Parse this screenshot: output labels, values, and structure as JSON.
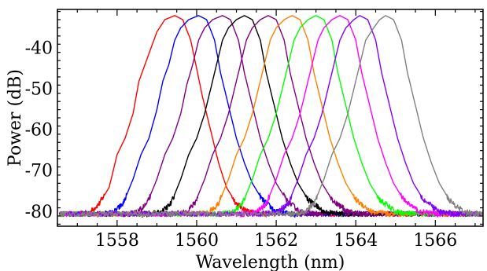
{
  "chart_data": {
    "type": "line",
    "title": "",
    "xlabel": "Wavelength (nm)",
    "ylabel": "Power (dB)",
    "xlim": [
      1556.5,
      1567.2
    ],
    "ylim": [
      -83.5,
      -30.5
    ],
    "x_ticks": [
      1558,
      1560,
      1562,
      1564,
      1566
    ],
    "y_ticks": [
      -40,
      -50,
      -60,
      -70,
      -80
    ],
    "legend": "none",
    "grid": false,
    "noise_floor": -80.5,
    "peak_level": -32,
    "series": [
      {
        "color": "#ff0000",
        "values": [
          [
            1557.0,
            -80.6
          ],
          [
            1557.3,
            -80.2
          ],
          [
            1557.55,
            -78
          ],
          [
            1557.8,
            -74
          ],
          [
            1558.0,
            -66
          ],
          [
            1558.2,
            -62
          ],
          [
            1558.4,
            -56
          ],
          [
            1558.55,
            -48
          ],
          [
            1558.7,
            -44
          ],
          [
            1558.85,
            -40
          ],
          [
            1559.0,
            -36
          ],
          [
            1559.2,
            -33
          ],
          [
            1559.45,
            -32
          ],
          [
            1559.65,
            -33
          ],
          [
            1559.85,
            -38
          ],
          [
            1560.0,
            -45
          ],
          [
            1560.15,
            -52
          ],
          [
            1560.35,
            -60
          ],
          [
            1560.55,
            -68
          ],
          [
            1560.75,
            -74
          ],
          [
            1561.0,
            -78
          ],
          [
            1561.3,
            -80
          ],
          [
            1561.8,
            -80.6
          ]
        ]
      },
      {
        "color": "#0000ff",
        "values": [
          [
            1557.5,
            -80.6
          ],
          [
            1557.9,
            -80.2
          ],
          [
            1558.15,
            -78
          ],
          [
            1558.4,
            -72
          ],
          [
            1558.6,
            -66
          ],
          [
            1558.8,
            -62
          ],
          [
            1559.0,
            -55
          ],
          [
            1559.15,
            -48
          ],
          [
            1559.3,
            -44
          ],
          [
            1559.45,
            -38
          ],
          [
            1559.6,
            -35
          ],
          [
            1559.8,
            -33
          ],
          [
            1560.05,
            -32
          ],
          [
            1560.25,
            -33
          ],
          [
            1560.45,
            -38
          ],
          [
            1560.6,
            -46
          ],
          [
            1560.8,
            -54
          ],
          [
            1561.0,
            -62
          ],
          [
            1561.2,
            -68
          ],
          [
            1561.4,
            -73
          ],
          [
            1561.65,
            -77
          ],
          [
            1562.0,
            -80
          ],
          [
            1562.5,
            -80.6
          ]
        ]
      },
      {
        "color": "#800080",
        "values": [
          [
            1558.1,
            -80.6
          ],
          [
            1558.5,
            -80.2
          ],
          [
            1558.75,
            -78
          ],
          [
            1559.0,
            -72
          ],
          [
            1559.2,
            -66
          ],
          [
            1559.4,
            -62
          ],
          [
            1559.6,
            -56
          ],
          [
            1559.75,
            -49
          ],
          [
            1559.9,
            -44
          ],
          [
            1560.05,
            -38
          ],
          [
            1560.2,
            -35
          ],
          [
            1560.4,
            -33
          ],
          [
            1560.65,
            -32
          ],
          [
            1560.85,
            -33
          ],
          [
            1561.05,
            -38
          ],
          [
            1561.2,
            -46
          ],
          [
            1561.4,
            -54
          ],
          [
            1561.6,
            -62
          ],
          [
            1561.8,
            -68
          ],
          [
            1562.0,
            -73
          ],
          [
            1562.25,
            -77
          ],
          [
            1562.6,
            -80
          ],
          [
            1563.1,
            -80.6
          ]
        ]
      },
      {
        "color": "#000000",
        "values": [
          [
            1558.6,
            -80.6
          ],
          [
            1559.1,
            -80.2
          ],
          [
            1559.35,
            -78
          ],
          [
            1559.6,
            -72
          ],
          [
            1559.8,
            -66
          ],
          [
            1560.0,
            -62
          ],
          [
            1560.2,
            -56
          ],
          [
            1560.35,
            -50
          ],
          [
            1560.5,
            -44
          ],
          [
            1560.65,
            -38
          ],
          [
            1560.8,
            -35
          ],
          [
            1561.0,
            -33
          ],
          [
            1561.2,
            -32
          ],
          [
            1561.4,
            -33
          ],
          [
            1561.6,
            -38
          ],
          [
            1561.75,
            -46
          ],
          [
            1561.95,
            -54
          ],
          [
            1562.15,
            -62
          ],
          [
            1562.35,
            -68
          ],
          [
            1562.55,
            -73
          ],
          [
            1562.8,
            -77
          ],
          [
            1563.2,
            -80
          ],
          [
            1563.7,
            -80.6
          ]
        ]
      },
      {
        "color": "#800080",
        "values": [
          [
            1559.2,
            -80.6
          ],
          [
            1559.7,
            -80.2
          ],
          [
            1559.95,
            -78
          ],
          [
            1560.2,
            -72
          ],
          [
            1560.4,
            -66
          ],
          [
            1560.6,
            -62
          ],
          [
            1560.8,
            -56
          ],
          [
            1560.95,
            -50
          ],
          [
            1561.1,
            -44
          ],
          [
            1561.25,
            -38
          ],
          [
            1561.4,
            -35
          ],
          [
            1561.6,
            -33
          ],
          [
            1561.8,
            -32
          ],
          [
            1562.0,
            -33
          ],
          [
            1562.2,
            -38
          ],
          [
            1562.35,
            -46
          ],
          [
            1562.55,
            -54
          ],
          [
            1562.75,
            -62
          ],
          [
            1562.95,
            -68
          ],
          [
            1563.15,
            -73
          ],
          [
            1563.4,
            -77
          ],
          [
            1563.8,
            -80
          ],
          [
            1564.3,
            -80.6
          ]
        ]
      },
      {
        "color": "#ff8000",
        "values": [
          [
            1559.8,
            -80.6
          ],
          [
            1560.3,
            -80.2
          ],
          [
            1560.55,
            -78
          ],
          [
            1560.8,
            -72
          ],
          [
            1561.0,
            -66
          ],
          [
            1561.2,
            -62
          ],
          [
            1561.4,
            -56
          ],
          [
            1561.55,
            -50
          ],
          [
            1561.7,
            -44
          ],
          [
            1561.85,
            -38
          ],
          [
            1562.0,
            -35
          ],
          [
            1562.2,
            -33
          ],
          [
            1562.4,
            -32
          ],
          [
            1562.6,
            -33
          ],
          [
            1562.8,
            -38
          ],
          [
            1562.95,
            -46
          ],
          [
            1563.15,
            -54
          ],
          [
            1563.35,
            -62
          ],
          [
            1563.55,
            -68
          ],
          [
            1563.75,
            -73
          ],
          [
            1564.0,
            -77
          ],
          [
            1564.4,
            -80
          ],
          [
            1564.9,
            -80.6
          ]
        ]
      },
      {
        "color": "#00ff00",
        "values": [
          [
            1560.4,
            -80.6
          ],
          [
            1560.9,
            -80.2
          ],
          [
            1561.15,
            -78
          ],
          [
            1561.4,
            -72
          ],
          [
            1561.6,
            -66
          ],
          [
            1561.8,
            -62
          ],
          [
            1562.0,
            -56
          ],
          [
            1562.15,
            -50
          ],
          [
            1562.3,
            -44
          ],
          [
            1562.45,
            -38
          ],
          [
            1562.6,
            -35
          ],
          [
            1562.8,
            -33
          ],
          [
            1563.0,
            -32
          ],
          [
            1563.2,
            -33
          ],
          [
            1563.4,
            -38
          ],
          [
            1563.55,
            -46
          ],
          [
            1563.75,
            -54
          ],
          [
            1563.95,
            -62
          ],
          [
            1564.15,
            -68
          ],
          [
            1564.35,
            -73
          ],
          [
            1564.6,
            -77
          ],
          [
            1565.0,
            -80
          ],
          [
            1565.5,
            -80.6
          ]
        ]
      },
      {
        "color": "#ff00ff",
        "values": [
          [
            1561.0,
            -80.6
          ],
          [
            1561.5,
            -80.2
          ],
          [
            1561.75,
            -78
          ],
          [
            1562.0,
            -72
          ],
          [
            1562.2,
            -66
          ],
          [
            1562.4,
            -62
          ],
          [
            1562.6,
            -56
          ],
          [
            1562.75,
            -50
          ],
          [
            1562.9,
            -44
          ],
          [
            1563.05,
            -38
          ],
          [
            1563.2,
            -35
          ],
          [
            1563.4,
            -33
          ],
          [
            1563.6,
            -32
          ],
          [
            1563.8,
            -33
          ],
          [
            1564.0,
            -38
          ],
          [
            1564.15,
            -46
          ],
          [
            1564.35,
            -54
          ],
          [
            1564.55,
            -62
          ],
          [
            1564.75,
            -68
          ],
          [
            1564.95,
            -73
          ],
          [
            1565.2,
            -77
          ],
          [
            1565.6,
            -80
          ],
          [
            1566.1,
            -80.6
          ]
        ]
      },
      {
        "color": "#8000ff",
        "values": [
          [
            1561.5,
            -80.6
          ],
          [
            1562.0,
            -80.2
          ],
          [
            1562.3,
            -78
          ],
          [
            1562.55,
            -72
          ],
          [
            1562.75,
            -66
          ],
          [
            1562.95,
            -62
          ],
          [
            1563.15,
            -56
          ],
          [
            1563.3,
            -50
          ],
          [
            1563.45,
            -44
          ],
          [
            1563.6,
            -38
          ],
          [
            1563.75,
            -35
          ],
          [
            1563.95,
            -33
          ],
          [
            1564.1,
            -32
          ],
          [
            1564.3,
            -33
          ],
          [
            1564.5,
            -38
          ],
          [
            1564.65,
            -46
          ],
          [
            1564.85,
            -54
          ],
          [
            1565.05,
            -62
          ],
          [
            1565.25,
            -68
          ],
          [
            1565.45,
            -73
          ],
          [
            1565.7,
            -77
          ],
          [
            1566.1,
            -80
          ],
          [
            1566.6,
            -80.6
          ]
        ]
      },
      {
        "color": "#808080",
        "values": [
          [
            1562.3,
            -80.6
          ],
          [
            1562.7,
            -80.2
          ],
          [
            1562.95,
            -78
          ],
          [
            1563.2,
            -72
          ],
          [
            1563.4,
            -66
          ],
          [
            1563.6,
            -62
          ],
          [
            1563.8,
            -56
          ],
          [
            1563.95,
            -50
          ],
          [
            1564.1,
            -44
          ],
          [
            1564.25,
            -38
          ],
          [
            1564.45,
            -35
          ],
          [
            1564.6,
            -33
          ],
          [
            1564.75,
            -32
          ],
          [
            1564.95,
            -33
          ],
          [
            1565.15,
            -38
          ],
          [
            1565.3,
            -46
          ],
          [
            1565.5,
            -54
          ],
          [
            1565.7,
            -62
          ],
          [
            1565.9,
            -68
          ],
          [
            1566.1,
            -73
          ],
          [
            1566.35,
            -77
          ],
          [
            1566.7,
            -80
          ],
          [
            1567.2,
            -80.6
          ]
        ]
      }
    ]
  }
}
